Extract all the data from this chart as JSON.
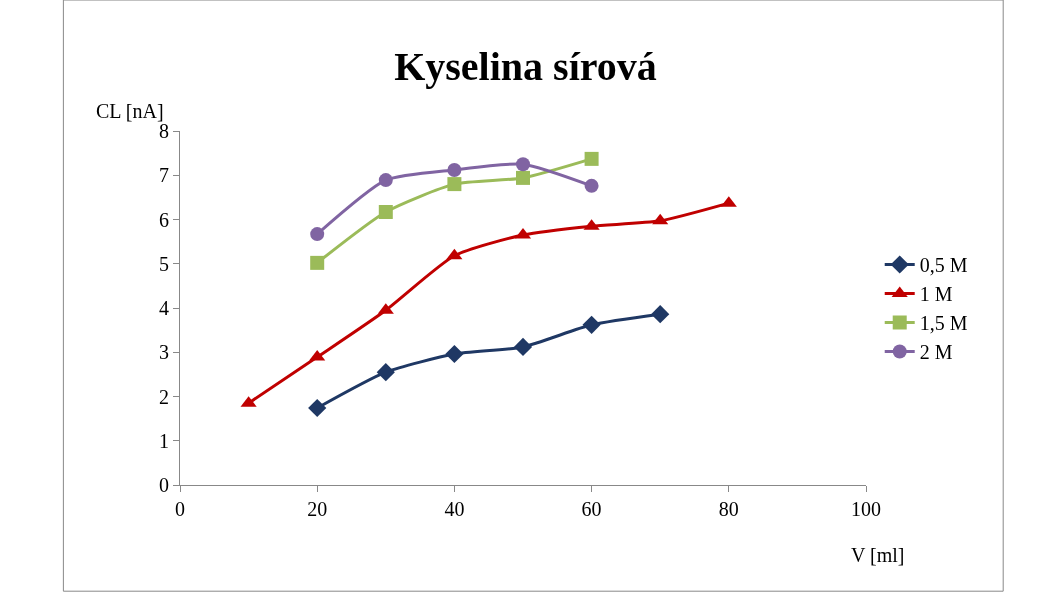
{
  "chart_data": {
    "type": "line",
    "title": "Kyselina sírová",
    "xlabel": "V [ml]",
    "ylabel": "CL [nA]",
    "xlim": [
      0,
      100
    ],
    "xticks": [
      0,
      20,
      40,
      60,
      80,
      100
    ],
    "ylim": [
      0,
      8
    ],
    "yticks": [
      0,
      1,
      2,
      3,
      4,
      5,
      6,
      7,
      8
    ],
    "legend": "right",
    "series": [
      {
        "name": "0,5 M",
        "color": "#1f3864",
        "marker": "diamond",
        "x": [
          20,
          30,
          40,
          50,
          60,
          70
        ],
        "values": [
          1.74,
          2.55,
          2.96,
          3.12,
          3.62,
          3.86
        ]
      },
      {
        "name": "1 M",
        "color": "#c00000",
        "marker": "triangle",
        "x": [
          10,
          20,
          30,
          40,
          50,
          60,
          70,
          80
        ],
        "values": [
          1.85,
          2.89,
          3.95,
          5.18,
          5.65,
          5.85,
          5.97,
          6.37
        ]
      },
      {
        "name": "1,5 M",
        "color": "#9bbb59",
        "marker": "square",
        "x": [
          20,
          30,
          40,
          50,
          60
        ],
        "values": [
          5.02,
          6.17,
          6.8,
          6.94,
          7.37
        ]
      },
      {
        "name": "2 M",
        "color": "#8064a2",
        "marker": "circle",
        "x": [
          20,
          30,
          40,
          50,
          60
        ],
        "values": [
          5.67,
          6.89,
          7.12,
          7.25,
          6.76
        ]
      }
    ]
  }
}
